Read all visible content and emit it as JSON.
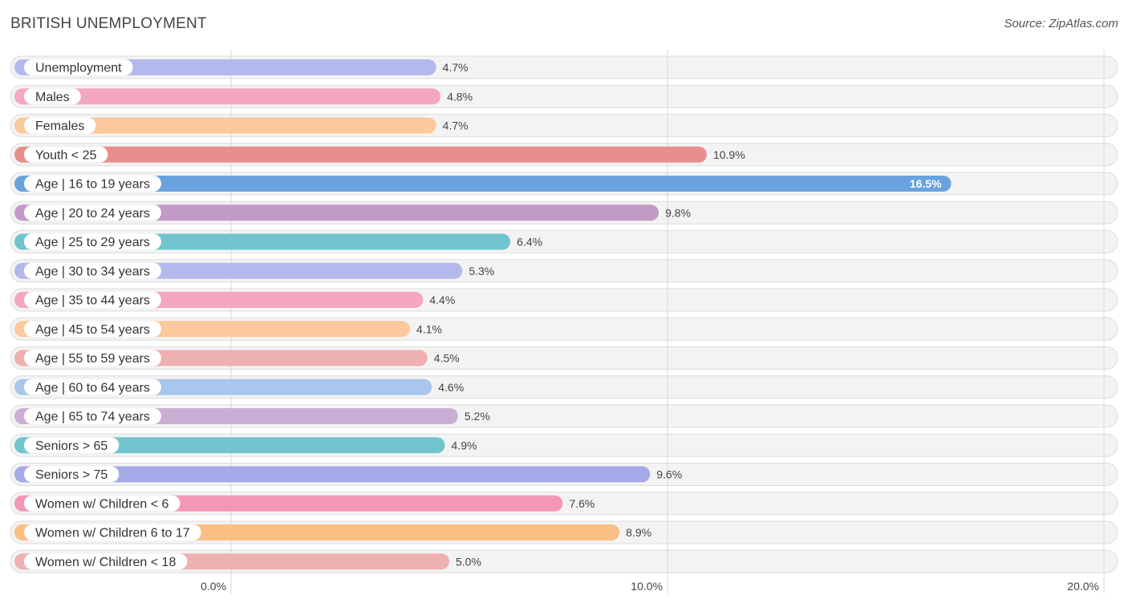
{
  "header": {
    "title": "BRITISH UNEMPLOYMENT",
    "source": "Source: ZipAtlas.com"
  },
  "chart_data": {
    "type": "bar",
    "orientation": "horizontal",
    "title": "BRITISH UNEMPLOYMENT",
    "xlim": [
      0,
      20
    ],
    "x_ticks": [
      "0.0%",
      "10.0%",
      "20.0%"
    ],
    "x_tick_values": [
      0,
      10,
      20
    ],
    "grid": true,
    "categories": [
      "Unemployment",
      "Males",
      "Females",
      "Youth < 25",
      "Age | 16 to 19 years",
      "Age | 20 to 24 years",
      "Age | 25 to 29 years",
      "Age | 30 to 34 years",
      "Age | 35 to 44 years",
      "Age | 45 to 54 years",
      "Age | 55 to 59 years",
      "Age | 60 to 64 years",
      "Age | 65 to 74 years",
      "Seniors > 65",
      "Seniors > 75",
      "Women w/ Children < 6",
      "Women w/ Children 6 to 17",
      "Women w/ Children < 18"
    ],
    "values": [
      4.7,
      4.8,
      4.7,
      10.9,
      16.5,
      9.8,
      6.4,
      5.3,
      4.4,
      4.1,
      4.5,
      4.6,
      5.2,
      4.9,
      9.6,
      7.6,
      8.9,
      5.0
    ],
    "value_labels": [
      "4.7%",
      "4.8%",
      "4.7%",
      "10.9%",
      "16.5%",
      "9.8%",
      "6.4%",
      "5.3%",
      "4.4%",
      "4.1%",
      "4.5%",
      "4.6%",
      "5.2%",
      "4.9%",
      "9.6%",
      "7.6%",
      "8.9%",
      "5.0%"
    ],
    "colors": [
      "#b3b9ec",
      "#f5a6c1",
      "#fbc99b",
      "#e88f8d",
      "#6aa2e0",
      "#c29ac6",
      "#72c5cf",
      "#b3b9ec",
      "#f5a6c1",
      "#fbc99b",
      "#efb0b0",
      "#a9c6ec",
      "#cbaed3",
      "#72c5cf",
      "#a4a9e8",
      "#f297b5",
      "#f9bf85",
      "#efb0b0"
    ]
  }
}
